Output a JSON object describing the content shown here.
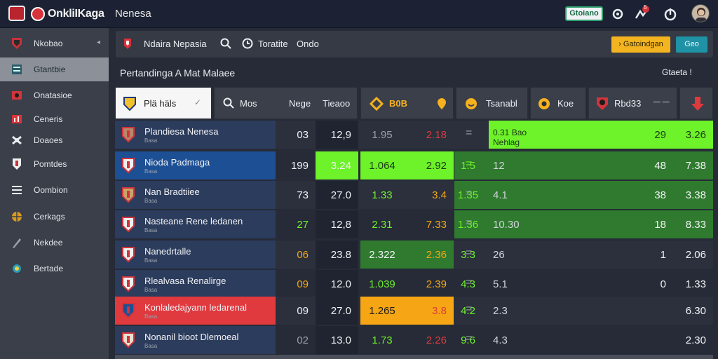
{
  "topbar": {
    "brand": "OnkliIKaga",
    "title": "Nenesa",
    "button": "Gtoiano",
    "notif_badge": "5"
  },
  "sidebar": {
    "items": [
      {
        "label": "Nkobao",
        "icon": "team-crest-icon"
      },
      {
        "label": "Gtantbie",
        "icon": "list-icon"
      },
      {
        "label": "Onatasioe",
        "icon": "flag-icon"
      },
      {
        "label": "Ceneris",
        "icon": "chart-icon"
      },
      {
        "label": "Doaoes",
        "icon": "gear-icon"
      },
      {
        "label": "Pomtdes",
        "icon": "shield-icon"
      },
      {
        "label": "Oombion",
        "icon": "menu-icon"
      },
      {
        "label": "Cerkags",
        "icon": "globe-icon"
      },
      {
        "label": "Nekdee",
        "icon": "pen-icon"
      },
      {
        "label": "Bertade",
        "icon": "trophy-icon"
      }
    ]
  },
  "toolbar": {
    "league": "Ndaira Nepasia",
    "filter_label": "Toratite",
    "filter_value": "Ondo",
    "yellow_button": "Gatoindgan",
    "teal_button": "Geo"
  },
  "section": {
    "title": "Pertandinga A Mat Malaee",
    "right": "Gtaeta !"
  },
  "filters": [
    {
      "label": "Plä häls",
      "icon": "team-crest-icon"
    },
    {
      "label": "Mos",
      "icon": "search-icon"
    },
    {
      "label": "Nege",
      "icon": ""
    },
    {
      "label": "Tieaoo",
      "icon": ""
    },
    {
      "label": "B0B",
      "icon": "coin-icon"
    },
    {
      "label": "",
      "icon": "pin-icon"
    },
    {
      "label": "Tsanabl",
      "icon": "smile-icon"
    },
    {
      "label": "Koe",
      "icon": "ball-icon"
    },
    {
      "label": "Rbd33",
      "icon": "team-crest-icon"
    },
    {
      "label": "— —",
      "icon": ""
    },
    {
      "label": "",
      "icon": "down-arrow-icon"
    }
  ],
  "rows": [
    {
      "team": "Plandiesa Nenesa",
      "sub": "Basa",
      "c1": "03",
      "c2": "12,9",
      "c3": "1.95",
      "c4": "2.18",
      "c5": "",
      "c6": "0.31 Bao Nehlag",
      "c7": "",
      "c8": "29",
      "c9": "3.26"
    },
    {
      "team": "Nioda Padmaga",
      "sub": "Basa",
      "c1": "199",
      "c2": "3.24",
      "c3": "1.064",
      "c4": "2.92",
      "c5": "1.5",
      "c6": "12",
      "c7": "",
      "c8": "48",
      "c9": "7.38"
    },
    {
      "team": "Nan Bradtiiee",
      "sub": "Basa",
      "c1": "73",
      "c2": "27.0",
      "c3": "1.33",
      "c4": "3.4",
      "c5": "1.35",
      "c6": "4.1",
      "c7": "",
      "c8": "38",
      "c9": "3.38"
    },
    {
      "team": "Nasteane Rene ledanen",
      "sub": "Basa",
      "c1": "27",
      "c2": "12,8",
      "c3": "2.31",
      "c4": "7.33",
      "c5": "1.36",
      "c6": "10.30",
      "c7": "",
      "c8": "18",
      "c9": "8.33"
    },
    {
      "team": "Nanedrtalle",
      "sub": "Basa",
      "c1": "06",
      "c2": "23.8",
      "c3": "2.322",
      "c4": "2.36",
      "c5": "3.3",
      "c6": "26",
      "c7": "",
      "c8": "1",
      "c9": "2.06"
    },
    {
      "team": "Rlealvasa Renalirge",
      "sub": "Basa",
      "c1": "09",
      "c2": "12.0",
      "c3": "1.039",
      "c4": "2.39",
      "c5": "4.3",
      "c6": "5.1",
      "c7": "",
      "c8": "0",
      "c9": "1.33"
    },
    {
      "team": "Konlaledajyann ledarenal",
      "sub": "Basa",
      "c1": "09",
      "c2": "27.0",
      "c3": "1.265",
      "c4": "3.8",
      "c5": "4.2",
      "c6": "2.3",
      "c7": "",
      "c8": "",
      "c9": "6.30"
    },
    {
      "team": "Nonanil bioot Dlemoeal",
      "sub": "Basa",
      "c1": "02",
      "c2": "13.0",
      "c3": "1.73",
      "c4": "2.26",
      "c5": "9.6",
      "c6": "4.3",
      "c7": "",
      "c8": "",
      "c9": "2.30"
    }
  ],
  "colors": {
    "green_bright": "#6ef22a",
    "green_dark": "#2f7a2e",
    "blue_row": "#1d4f94",
    "red_row": "#e0393e",
    "orange": "#f6a615"
  }
}
